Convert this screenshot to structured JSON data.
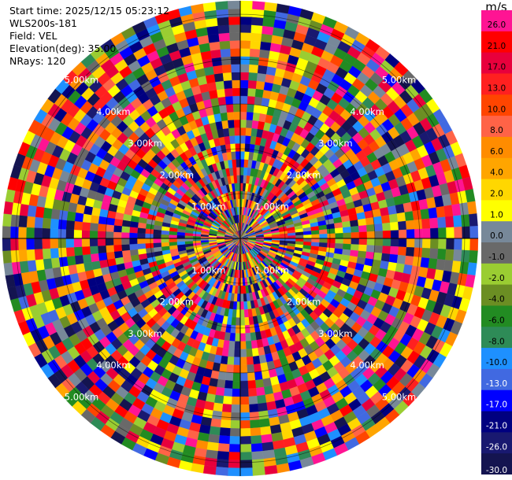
{
  "info": {
    "start_time": "Start time: 2025/12/15 05:23:12",
    "instrument": "WLS200s-181",
    "field": "Field: VEL",
    "elevation": "Elevation(deg): 35.00",
    "nrays": "NRays: 120"
  },
  "chart_data": {
    "type": "heatmap",
    "projection": "polar PPI",
    "field": "VEL",
    "units": "m/s",
    "nrays": 120,
    "range_rings_km": [
      1,
      2,
      3,
      4,
      5
    ],
    "range_ring_labels": [
      "1.00km",
      "2.00km",
      "3.00km",
      "4.00km",
      "5.00km"
    ],
    "colorbar": {
      "label": "m/s",
      "ticks": [
        "26.0",
        "21.0",
        "17.0",
        "13.0",
        "10.0",
        "8.0",
        "6.0",
        "4.0",
        "2.0",
        "1.0",
        "0.0",
        "-1.0",
        "-2.0",
        "-4.0",
        "-6.0",
        "-8.0",
        "-10.0",
        "-13.0",
        "-17.0",
        "-21.0",
        "-26.0",
        "-30.0"
      ],
      "colors": [
        "#ff1493",
        "#ff0000",
        "#e8003c",
        "#ff2020",
        "#ff4500",
        "#ff6347",
        "#ff8c00",
        "#ffa500",
        "#ffd700",
        "#ffff00",
        "#778899",
        "#696969",
        "#9acd32",
        "#6b8e23",
        "#228b22",
        "#2e8b57",
        "#1e90ff",
        "#4169e1",
        "#0000ff",
        "#000080",
        "#191970",
        "#141450"
      ]
    }
  }
}
